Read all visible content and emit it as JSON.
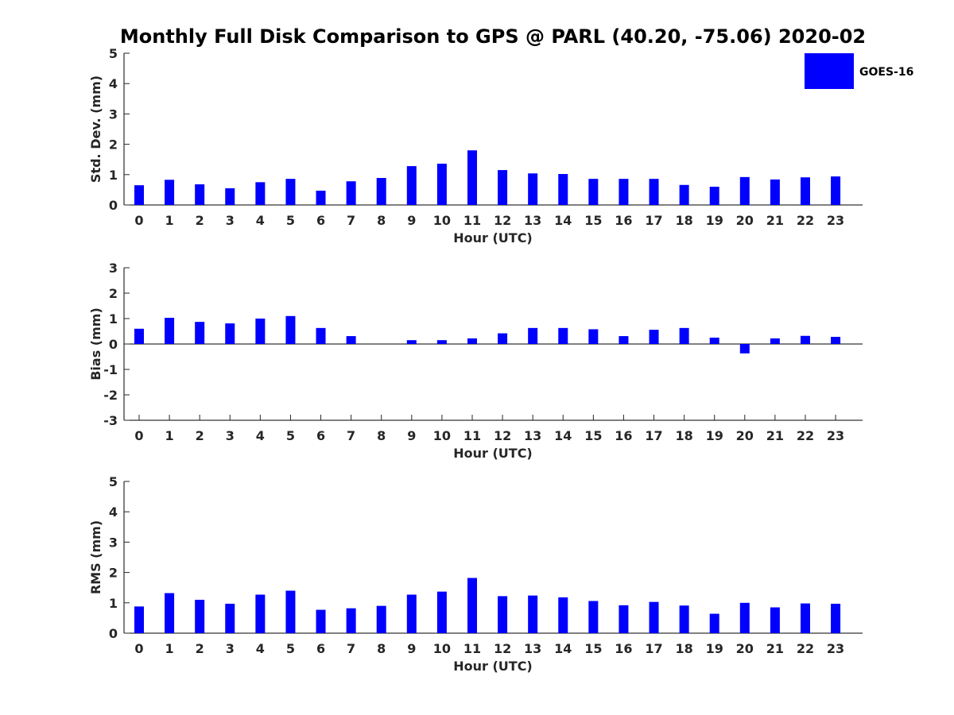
{
  "title": "Monthly Full Disk Comparison to GPS @ PARL (40.20, -75.06) 2020-02",
  "legend": {
    "label": "GOES-16",
    "color": "#0000ff",
    "placement": "top-right"
  },
  "chart_data": [
    {
      "type": "bar",
      "ylabel": "Std. Dev. (mm)",
      "xlabel": "Hour (UTC)",
      "categories": [
        "0",
        "1",
        "2",
        "3",
        "4",
        "5",
        "6",
        "7",
        "8",
        "9",
        "10",
        "11",
        "12",
        "13",
        "14",
        "15",
        "16",
        "17",
        "18",
        "19",
        "20",
        "21",
        "22",
        "23"
      ],
      "yticks": [
        "0",
        "1",
        "2",
        "3",
        "4",
        "5"
      ],
      "ylim": [
        0,
        5
      ],
      "series": [
        {
          "name": "GOES-16",
          "color": "#0000ff",
          "values": [
            0.65,
            0.83,
            0.68,
            0.55,
            0.75,
            0.86,
            0.47,
            0.78,
            0.89,
            1.28,
            1.36,
            1.8,
            1.15,
            1.04,
            1.02,
            0.86,
            0.86,
            0.86,
            0.66,
            0.6,
            0.92,
            0.84,
            0.91,
            0.94
          ]
        }
      ],
      "grid": false
    },
    {
      "type": "bar",
      "ylabel": "Bias (mm)",
      "xlabel": "Hour (UTC)",
      "categories": [
        "0",
        "1",
        "2",
        "3",
        "4",
        "5",
        "6",
        "7",
        "8",
        "9",
        "10",
        "11",
        "12",
        "13",
        "14",
        "15",
        "16",
        "17",
        "18",
        "19",
        "20",
        "21",
        "22",
        "23"
      ],
      "yticks": [
        "-3",
        "-2",
        "-1",
        "0",
        "1",
        "2",
        "3"
      ],
      "ylim": [
        -3,
        3
      ],
      "series": [
        {
          "name": "GOES-16",
          "color": "#0000ff",
          "values": [
            0.6,
            1.03,
            0.87,
            0.81,
            1.0,
            1.1,
            0.63,
            0.31,
            0.0,
            0.15,
            0.15,
            0.22,
            0.42,
            0.63,
            0.63,
            0.58,
            0.31,
            0.56,
            0.63,
            0.25,
            -0.37,
            0.22,
            0.32,
            0.28
          ]
        }
      ],
      "grid": false
    },
    {
      "type": "bar",
      "ylabel": "RMS (mm)",
      "xlabel": "Hour (UTC)",
      "categories": [
        "0",
        "1",
        "2",
        "3",
        "4",
        "5",
        "6",
        "7",
        "8",
        "9",
        "10",
        "11",
        "12",
        "13",
        "14",
        "15",
        "16",
        "17",
        "18",
        "19",
        "20",
        "21",
        "22",
        "23"
      ],
      "yticks": [
        "0",
        "1",
        "2",
        "3",
        "4",
        "5"
      ],
      "ylim": [
        0,
        5
      ],
      "series": [
        {
          "name": "GOES-16",
          "color": "#0000ff",
          "values": [
            0.88,
            1.32,
            1.1,
            0.97,
            1.27,
            1.4,
            0.77,
            0.82,
            0.9,
            1.27,
            1.37,
            1.82,
            1.22,
            1.24,
            1.18,
            1.06,
            0.92,
            1.03,
            0.91,
            0.64,
            1.0,
            0.85,
            0.98,
            0.97
          ]
        }
      ],
      "grid": false
    }
  ]
}
